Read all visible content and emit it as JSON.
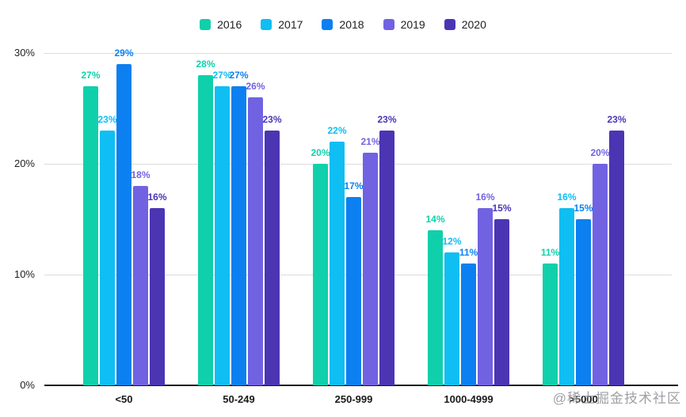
{
  "watermark": {
    "text": "@稀土掘金技术社区"
  },
  "chart_data": {
    "type": "bar",
    "title": "",
    "categories": [
      "<50",
      "50-249",
      "250-999",
      "1000-4999",
      ">5000"
    ],
    "series": [
      {
        "name": "2016",
        "color": "#10D0AC",
        "values": [
          27,
          28,
          20,
          14,
          11
        ]
      },
      {
        "name": "2017",
        "color": "#0FBEF2",
        "values": [
          23,
          27,
          22,
          12,
          16
        ]
      },
      {
        "name": "2018",
        "color": "#0C80F0",
        "values": [
          29,
          27,
          17,
          11,
          15
        ]
      },
      {
        "name": "2019",
        "color": "#7162E2",
        "values": [
          18,
          26,
          21,
          16,
          20
        ]
      },
      {
        "name": "2020",
        "color": "#4B35B3",
        "values": [
          16,
          23,
          23,
          15,
          23
        ]
      }
    ],
    "y_ticks": [
      "0%",
      "10%",
      "20%",
      "30%"
    ],
    "ylim": [
      0,
      30
    ],
    "grid": true,
    "legend_position": "top",
    "data_label_format": "{value}%",
    "xlabel": "",
    "ylabel": ""
  }
}
